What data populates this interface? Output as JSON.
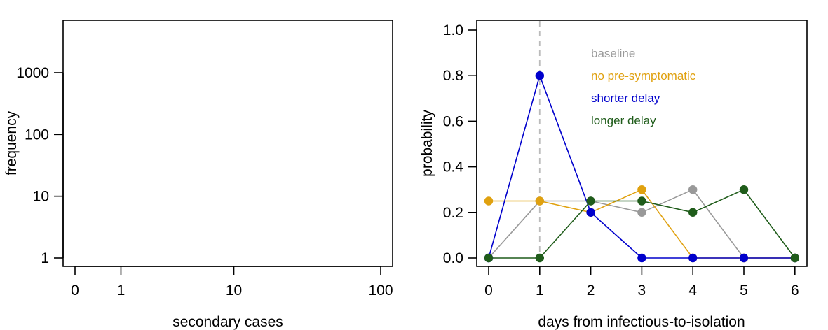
{
  "chart_data": [
    {
      "type": "scatter",
      "title": "",
      "xlabel": "secondary cases",
      "ylabel": "frequency",
      "x_scale": "log",
      "y_scale": "log",
      "x_ticks": [
        "0",
        "1",
        "10",
        "100"
      ],
      "y_ticks": [
        "1",
        "10",
        "100",
        "1000"
      ],
      "series": []
    },
    {
      "type": "line",
      "title": "",
      "xlabel": "days from infectious-to-isolation",
      "ylabel": "probability",
      "x": [
        0,
        1,
        2,
        3,
        4,
        5,
        6
      ],
      "ylim": [
        0,
        1.0
      ],
      "x_ticks": [
        "0",
        "1",
        "2",
        "3",
        "4",
        "5",
        "6"
      ],
      "y_ticks": [
        "0.0",
        "0.2",
        "0.4",
        "0.6",
        "0.8",
        "1.0"
      ],
      "reference_line_x": 1,
      "legend_position": "top-center",
      "series": [
        {
          "name": "baseline",
          "color": "#999999",
          "values": [
            0,
            0.25,
            0.25,
            0.2,
            0.3,
            0,
            0
          ]
        },
        {
          "name": "no pre-symptomatic",
          "color": "#E0A10F",
          "values": [
            0.25,
            0.25,
            0.2,
            0.3,
            0,
            0,
            0
          ]
        },
        {
          "name": "shorter delay",
          "color": "#0000CC",
          "values": [
            0,
            0.8,
            0.2,
            0,
            0,
            0,
            0
          ]
        },
        {
          "name": "longer delay",
          "color": "#1F5C1A",
          "values": [
            0,
            0,
            0.25,
            0.25,
            0.2,
            0.3,
            0
          ]
        }
      ]
    }
  ]
}
